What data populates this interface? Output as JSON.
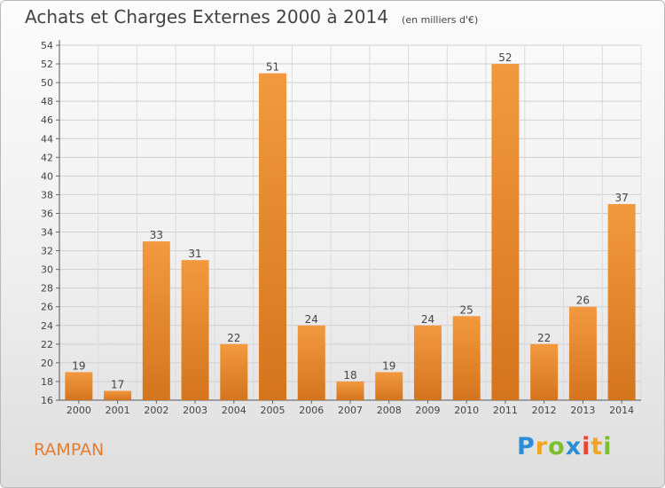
{
  "chart_data": {
    "type": "bar",
    "title": "Achats et Charges Externes 2000 à 2014",
    "unit_note": "(en milliers d'€)",
    "categories": [
      "2000",
      "2001",
      "2002",
      "2003",
      "2004",
      "2005",
      "2006",
      "2007",
      "2008",
      "2009",
      "2010",
      "2011",
      "2012",
      "2013",
      "2014"
    ],
    "values": [
      19,
      17,
      33,
      31,
      22,
      51,
      24,
      18,
      19,
      24,
      25,
      52,
      22,
      26,
      37
    ],
    "ylim": [
      16,
      54
    ],
    "yticks": [
      16,
      18,
      20,
      22,
      24,
      26,
      28,
      30,
      32,
      34,
      36,
      38,
      40,
      42,
      44,
      46,
      48,
      50,
      52,
      54
    ],
    "grid": true,
    "bar_color": "#f2993f",
    "bar_color_dark": "#d4751e"
  },
  "commune": "RAMPAN",
  "brand": {
    "letters": [
      "P",
      "r",
      "o",
      "x",
      "i",
      "t",
      "i"
    ],
    "colors": [
      "#2a8fd6",
      "#f2a61e",
      "#7bbf2e",
      "#2a8fd6",
      "#e8462f",
      "#f2a61e",
      "#7bbf2e"
    ]
  }
}
